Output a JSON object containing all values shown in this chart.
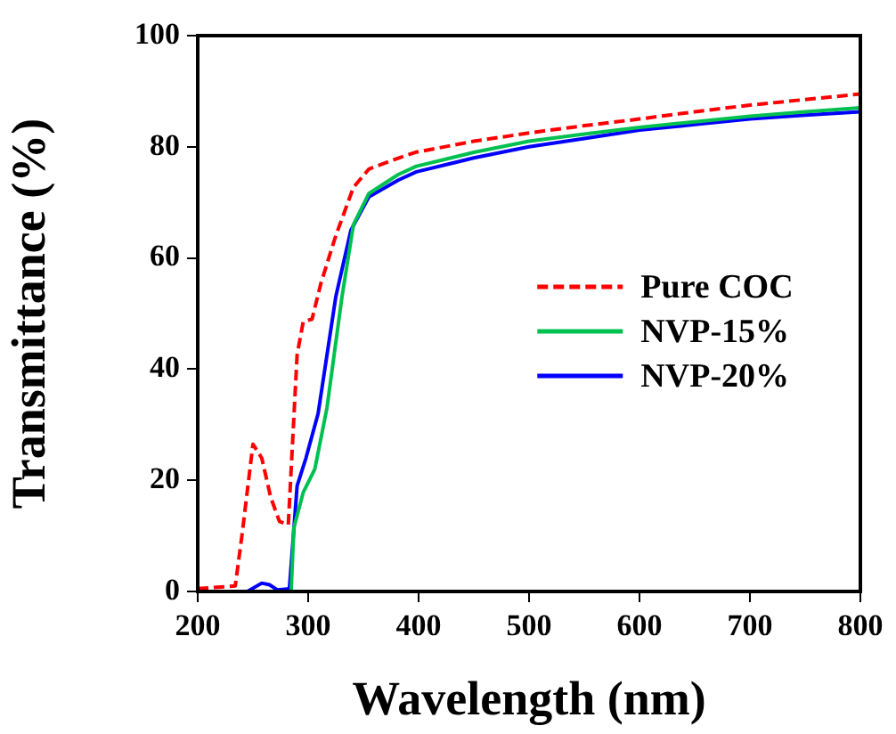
{
  "chart_data": {
    "type": "line",
    "xlabel": "Wavelength (nm)",
    "ylabel": "Transmittance (%)",
    "xlim": [
      200,
      800
    ],
    "xticks": [
      200,
      300,
      400,
      500,
      600,
      700,
      800
    ],
    "ylim": [
      0,
      100
    ],
    "yticks": [
      0,
      20,
      40,
      60,
      80,
      100
    ],
    "grid": false,
    "legend": "right",
    "marker": "none",
    "series": [
      {
        "name": "Pure COC",
        "color": "#ff0000",
        "line_style": "dashed",
        "x": [
          200,
          234,
          240,
          250,
          258,
          266,
          274,
          282,
          290,
          295.5,
          303.5,
          311.6,
          325,
          341,
          355,
          382,
          397,
          450,
          500,
          550,
          600,
          650,
          700,
          750,
          800
        ],
        "values": [
          0.5,
          1,
          10,
          26.5,
          24,
          17,
          12.6,
          12,
          42.6,
          48.5,
          49,
          55.5,
          64,
          72.7,
          76,
          78,
          79,
          81,
          82.5,
          83.8,
          85,
          86.3,
          87.5,
          88.5,
          89.5
        ]
      },
      {
        "name": "NVP-15%",
        "color": "#00c050",
        "line_style": "solid",
        "x": [
          200,
          284.6,
          287,
          295.5,
          306,
          317,
          330.6,
          341,
          355,
          381.5,
          398,
          450,
          500,
          550,
          600,
          650,
          700,
          750,
          800
        ],
        "values": [
          0,
          0,
          11.4,
          17.8,
          22,
          33,
          53,
          66,
          71.6,
          75,
          76.5,
          79,
          81,
          82.3,
          83.5,
          84.5,
          85.5,
          86.3,
          87
        ]
      },
      {
        "name": "NVP-20%",
        "color": "#0000ff",
        "line_style": "solid",
        "x": [
          200,
          245,
          258,
          265,
          272,
          283,
          290,
          298,
          309,
          325,
          338.7,
          355,
          381.5,
          398,
          450,
          500,
          550,
          600,
          650,
          700,
          750,
          800
        ],
        "values": [
          0,
          0,
          1.5,
          1.2,
          0.3,
          0.5,
          19,
          24,
          32,
          53,
          65,
          71,
          74,
          75.5,
          78,
          80,
          81.5,
          83,
          84,
          85,
          85.7,
          86.3
        ]
      }
    ]
  }
}
